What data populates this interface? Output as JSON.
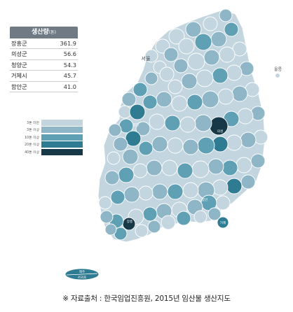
{
  "production_table": {
    "header": "생산량",
    "unit": "(톤)",
    "rows": [
      {
        "name": "장흥군",
        "value": "361.9"
      },
      {
        "name": "의성군",
        "value": "56.6"
      },
      {
        "name": "청양군",
        "value": "54.3"
      },
      {
        "name": "거제시",
        "value": "45.7"
      },
      {
        "name": "함안군",
        "value": "41.0"
      }
    ]
  },
  "legend": {
    "items": [
      {
        "label": "3톤 미만",
        "color": "#c3d6e0"
      },
      {
        "label": "3톤 이상",
        "color": "#8eb6c7"
      },
      {
        "label": "10톤 이상",
        "color": "#5fa0b5"
      },
      {
        "label": "20톤 이상",
        "color": "#2f7b92"
      },
      {
        "label": "40톤 이상",
        "color": "#163847"
      }
    ]
  },
  "map": {
    "labels": {
      "seoul": "서울",
      "ulleung": "울릉",
      "jeju": "제주",
      "seogwipo": "서귀포",
      "jangheung": "장흥",
      "uiseong": "의성",
      "cheongyang": "청양",
      "geoje": "거제",
      "haman": "함안"
    }
  },
  "source": "※ 자료출처 : 한국임업진흥원, 2015년 임산물 생산지도"
}
